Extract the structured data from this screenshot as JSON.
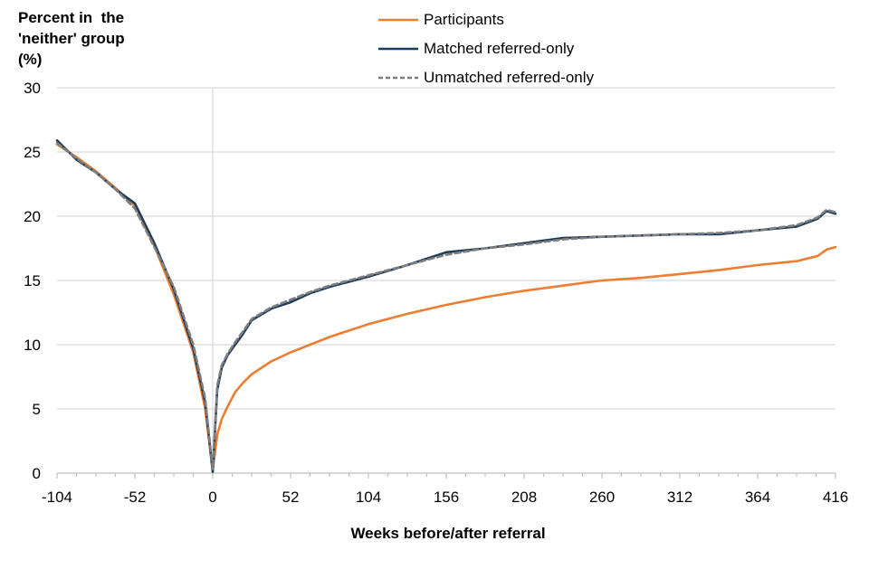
{
  "chart_data": {
    "type": "line",
    "ylabel_lines": [
      "Percent in  the",
      "'neither' group",
      "(%)"
    ],
    "xlabel": "Weeks before/after referral",
    "xlim": [
      -104,
      416
    ],
    "ylim": [
      0,
      30
    ],
    "xticks": [
      "-104",
      "-52",
      "0",
      "52",
      "104",
      "156",
      "208",
      "260",
      "312",
      "364",
      "416"
    ],
    "yticks": [
      "0",
      "5",
      "10",
      "15",
      "20",
      "25",
      "30"
    ],
    "grid": "horizontal",
    "legend_position": "top-center",
    "series": [
      {
        "name": "Participants",
        "color": "#ED7D31",
        "dash": "solid",
        "x": [
          -104,
          -91,
          -78,
          -65,
          -52,
          -39,
          -26,
          -13,
          -5,
          0,
          3,
          6,
          10,
          15,
          20,
          26,
          39,
          52,
          65,
          78,
          104,
          130,
          156,
          182,
          208,
          234,
          260,
          286,
          312,
          338,
          364,
          390,
          404,
          410,
          416
        ],
        "y": [
          25.6,
          24.6,
          23.5,
          22.2,
          20.8,
          17.7,
          13.9,
          9.4,
          5.0,
          0.2,
          3.0,
          4.2,
          5.2,
          6.3,
          7.0,
          7.7,
          8.7,
          9.4,
          10.0,
          10.6,
          11.6,
          12.4,
          13.1,
          13.7,
          14.2,
          14.6,
          15.0,
          15.2,
          15.5,
          15.8,
          16.2,
          16.5,
          16.9,
          17.4,
          17.6
        ]
      },
      {
        "name": "Matched referred-only",
        "color": "#1F3B5A",
        "dash": "solid",
        "x": [
          -104,
          -91,
          -78,
          -65,
          -52,
          -39,
          -26,
          -13,
          -5,
          0,
          3,
          6,
          10,
          15,
          20,
          26,
          39,
          52,
          65,
          78,
          104,
          130,
          156,
          182,
          208,
          234,
          260,
          286,
          312,
          338,
          364,
          390,
          404,
          410,
          416
        ],
        "y": [
          25.9,
          24.4,
          23.4,
          22.1,
          21.0,
          17.9,
          14.3,
          9.7,
          5.5,
          0.1,
          6.5,
          8.2,
          9.2,
          10.0,
          10.8,
          11.9,
          12.8,
          13.3,
          14.0,
          14.5,
          15.3,
          16.2,
          17.2,
          17.5,
          17.9,
          18.3,
          18.4,
          18.5,
          18.6,
          18.6,
          18.9,
          19.2,
          19.8,
          20.4,
          20.2
        ]
      },
      {
        "name": "Unmatched referred-only",
        "color": "#7F7F7F",
        "dash": "dashed",
        "x": [
          -104,
          -91,
          -78,
          -65,
          -52,
          -39,
          -26,
          -13,
          -5,
          0,
          3,
          6,
          10,
          15,
          20,
          26,
          39,
          52,
          65,
          78,
          104,
          130,
          156,
          182,
          208,
          234,
          260,
          286,
          312,
          338,
          364,
          390,
          404,
          410,
          416
        ],
        "y": [
          25.7,
          24.5,
          23.4,
          22.1,
          20.6,
          17.6,
          14.5,
          10.0,
          5.8,
          0.3,
          6.8,
          8.4,
          9.3,
          10.2,
          11.0,
          12.0,
          12.9,
          13.5,
          14.1,
          14.6,
          15.4,
          16.2,
          17.0,
          17.5,
          17.8,
          18.2,
          18.4,
          18.5,
          18.6,
          18.7,
          18.9,
          19.3,
          19.9,
          20.5,
          20.3
        ]
      }
    ]
  }
}
